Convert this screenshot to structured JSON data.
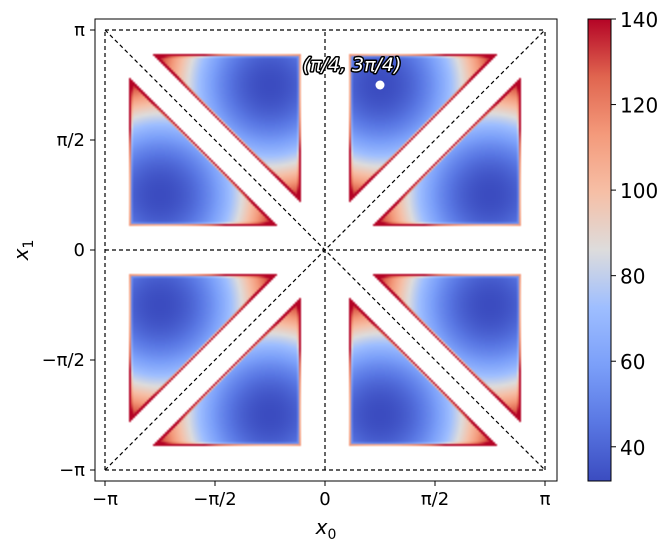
{
  "chart_data": {
    "type": "heatmap",
    "title": "",
    "xlabel": "x",
    "xlabel_sub": "0",
    "ylabel": "x",
    "ylabel_sub": "1",
    "xlim": [
      -3.14159,
      3.14159
    ],
    "ylim": [
      -3.14159,
      3.14159
    ],
    "x_ticks": [
      {
        "value": -3.14159,
        "label": "−π"
      },
      {
        "value": -1.5708,
        "label": "−π/2"
      },
      {
        "value": 0,
        "label": "0"
      },
      {
        "value": 1.5708,
        "label": "π/2"
      },
      {
        "value": 3.14159,
        "label": "π"
      }
    ],
    "y_ticks": [
      {
        "value": -3.14159,
        "label": "−π"
      },
      {
        "value": -1.5708,
        "label": "−π/2"
      },
      {
        "value": 0,
        "label": "0"
      },
      {
        "value": 1.5708,
        "label": "π/2"
      },
      {
        "value": 3.14159,
        "label": "π"
      }
    ],
    "colormap": "coolwarm",
    "value_range": [
      32,
      140
    ],
    "colorbar_ticks": [
      40,
      60,
      80,
      100,
      120,
      140
    ],
    "regions": [
      {
        "name": "region-1",
        "min_at": [
          -2.36,
          0.79
        ]
      },
      {
        "name": "region-2",
        "min_at": [
          -0.79,
          2.36
        ]
      },
      {
        "name": "region-3",
        "min_at": [
          0.79,
          2.36
        ]
      },
      {
        "name": "region-4",
        "min_at": [
          2.36,
          0.79
        ]
      },
      {
        "name": "region-5",
        "min_at": [
          2.36,
          -0.79
        ]
      },
      {
        "name": "region-6",
        "min_at": [
          0.79,
          -2.36
        ]
      },
      {
        "name": "region-7",
        "min_at": [
          -0.79,
          -2.36
        ]
      },
      {
        "name": "region-8",
        "min_at": [
          -2.36,
          -0.79
        ]
      }
    ],
    "min_value": 32,
    "edge_value": 140,
    "dashed_lines": [
      {
        "from": [
          -3.14159,
          -3.14159
        ],
        "to": [
          3.14159,
          3.14159
        ]
      },
      {
        "from": [
          -3.14159,
          3.14159
        ],
        "to": [
          3.14159,
          -3.14159
        ]
      },
      {
        "from": [
          0,
          -3.14159
        ],
        "to": [
          0,
          3.14159
        ]
      },
      {
        "from": [
          -3.14159,
          0
        ],
        "to": [
          3.14159,
          0
        ]
      },
      {
        "from": [
          -3.14159,
          -3.14159
        ],
        "to": [
          -3.14159,
          3.14159
        ]
      },
      {
        "from": [
          3.14159,
          -3.14159
        ],
        "to": [
          3.14159,
          3.14159
        ]
      },
      {
        "from": [
          -3.14159,
          3.14159
        ],
        "to": [
          3.14159,
          3.14159
        ]
      },
      {
        "from": [
          -3.14159,
          -3.14159
        ],
        "to": [
          3.14159,
          -3.14159
        ]
      }
    ],
    "annotations": [
      {
        "text": "(π/4, 3π/4)",
        "point": [
          0.7854,
          2.3562
        ]
      }
    ]
  }
}
